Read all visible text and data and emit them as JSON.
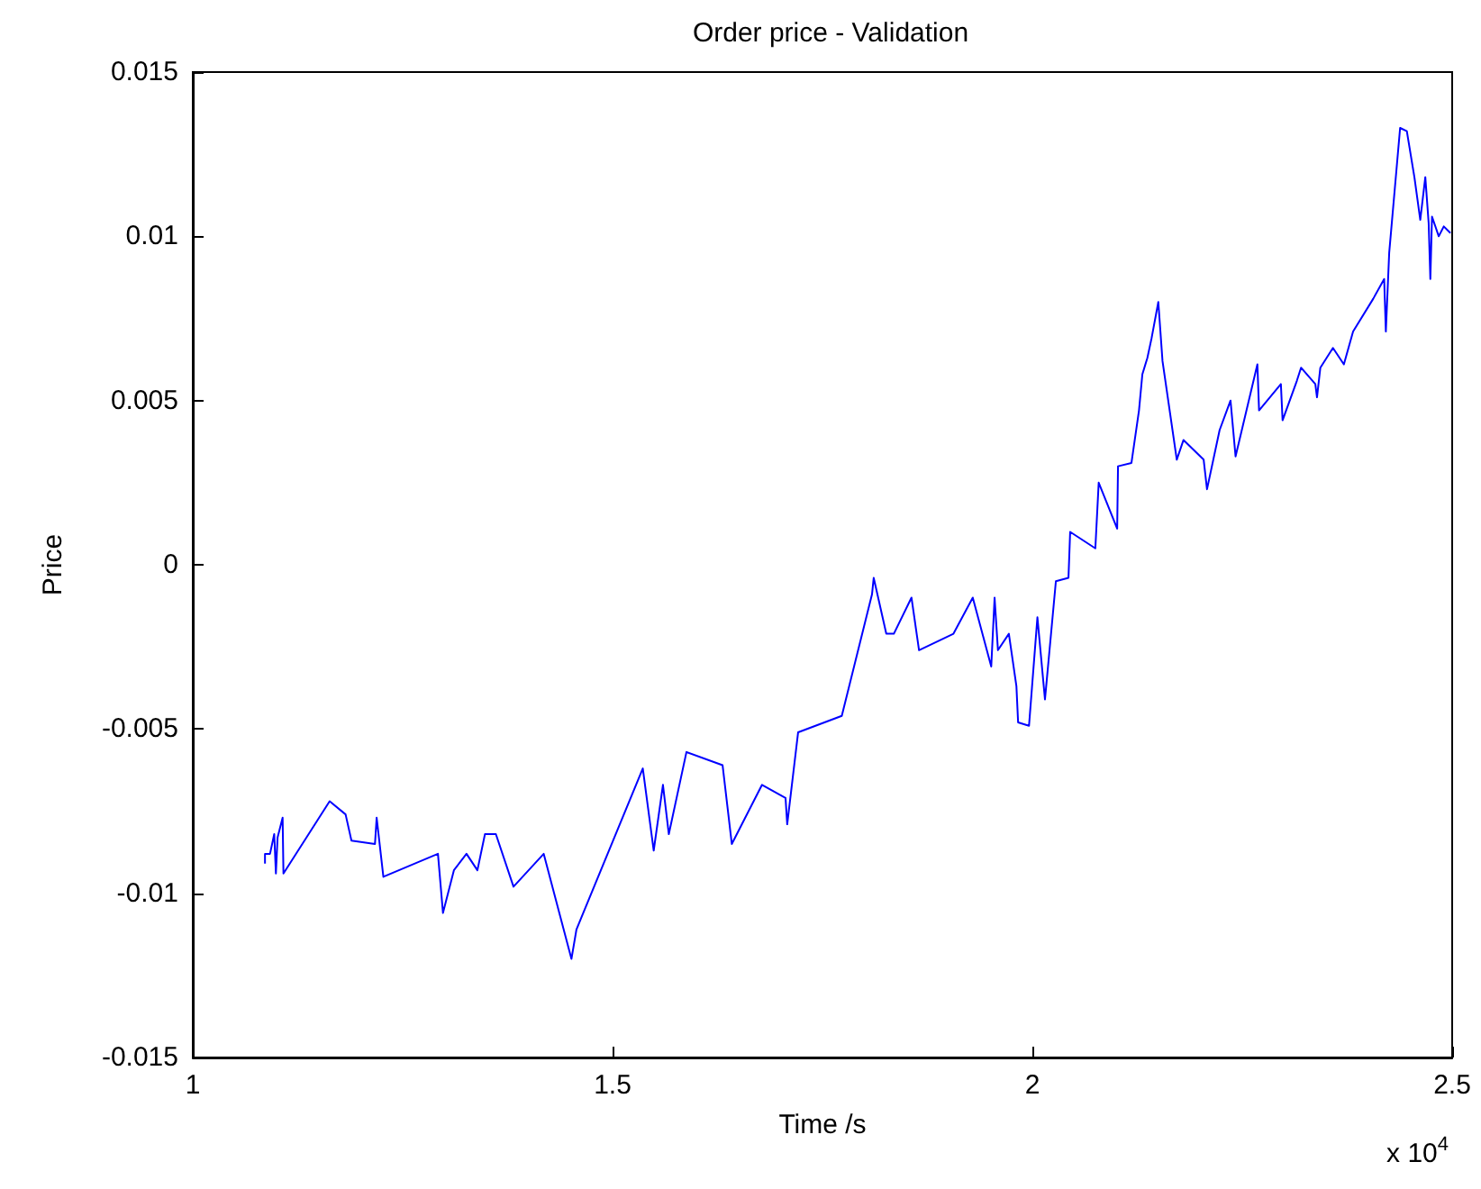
{
  "chart_data": {
    "type": "line",
    "title": "Order price - Validation",
    "xlabel": "Time /s",
    "ylabel": "Price",
    "annotations": [
      "x 10$^{4}$"
    ],
    "xlim": [
      1,
      2.5
    ],
    "xticks": [
      1,
      1.5,
      2,
      2.5
    ],
    "ylim": [
      -0.015,
      0.015
    ],
    "yticks": [
      -0.015,
      -0.01,
      -0.005,
      0,
      0.005,
      0.01,
      0.015
    ],
    "series": [
      {
        "color": "#0000ff",
        "x": [
          1.086,
          1.086,
          1.092,
          1.097,
          1.099,
          1.101,
          1.107,
          1.108,
          1.163,
          1.182,
          1.189,
          1.217,
          1.219,
          1.227,
          1.292,
          1.298,
          1.311,
          1.326,
          1.339,
          1.348,
          1.361,
          1.382,
          1.418,
          1.451,
          1.457,
          1.536,
          1.549,
          1.56,
          1.567,
          1.588,
          1.631,
          1.642,
          1.678,
          1.706,
          1.708,
          1.721,
          1.773,
          1.809,
          1.811,
          1.826,
          1.835,
          1.856,
          1.865,
          1.906,
          1.929,
          1.951,
          1.955,
          1.959,
          1.972,
          1.981,
          1.983,
          1.996,
          2.006,
          2.015,
          2.028,
          2.043,
          2.045,
          2.075,
          2.079,
          2.101,
          2.102,
          2.118,
          2.127,
          2.131,
          2.137,
          2.142,
          2.15,
          2.155,
          2.172,
          2.18,
          2.204,
          2.208,
          2.223,
          2.236,
          2.242,
          2.268,
          2.27,
          2.296,
          2.298,
          2.315,
          2.32,
          2.337,
          2.339,
          2.343,
          2.358,
          2.371,
          2.382,
          2.406,
          2.419,
          2.421,
          2.425,
          2.438,
          2.446,
          2.455,
          2.462,
          2.468,
          2.472,
          2.474,
          2.476,
          2.484,
          2.49,
          2.498
        ],
        "values": [
          -0.0091,
          -0.0088,
          -0.0088,
          -0.0082,
          -0.0094,
          -0.0083,
          -0.0077,
          -0.0094,
          -0.0072,
          -0.0076,
          -0.0084,
          -0.0085,
          -0.0077,
          -0.0095,
          -0.0088,
          -0.0106,
          -0.0093,
          -0.0088,
          -0.0093,
          -0.0082,
          -0.0082,
          -0.0098,
          -0.0088,
          -0.012,
          -0.0111,
          -0.0062,
          -0.0087,
          -0.0067,
          -0.0082,
          -0.0057,
          -0.0061,
          -0.0085,
          -0.0067,
          -0.0071,
          -0.0079,
          -0.0051,
          -0.0046,
          -0.0009,
          -0.0004,
          -0.0021,
          -0.0021,
          -0.001,
          -0.0026,
          -0.0021,
          -0.001,
          -0.0031,
          -0.001,
          -0.0026,
          -0.0021,
          -0.0037,
          -0.0048,
          -0.0049,
          -0.0016,
          -0.0041,
          -0.0005,
          -0.0004,
          0.001,
          0.0005,
          0.0025,
          0.0011,
          0.003,
          0.0031,
          0.0047,
          0.0058,
          0.0063,
          0.0069,
          0.008,
          0.0062,
          0.0032,
          0.0038,
          0.0032,
          0.0023,
          0.0041,
          0.005,
          0.0033,
          0.0061,
          0.0047,
          0.0055,
          0.0044,
          0.0056,
          0.006,
          0.0055,
          0.0051,
          0.006,
          0.0066,
          0.0061,
          0.0071,
          0.0081,
          0.0087,
          0.0071,
          0.0095,
          0.0133,
          0.0132,
          0.0118,
          0.0105,
          0.0118,
          0.0104,
          0.0087,
          0.0106,
          0.01,
          0.0103,
          0.0101
        ]
      }
    ]
  }
}
